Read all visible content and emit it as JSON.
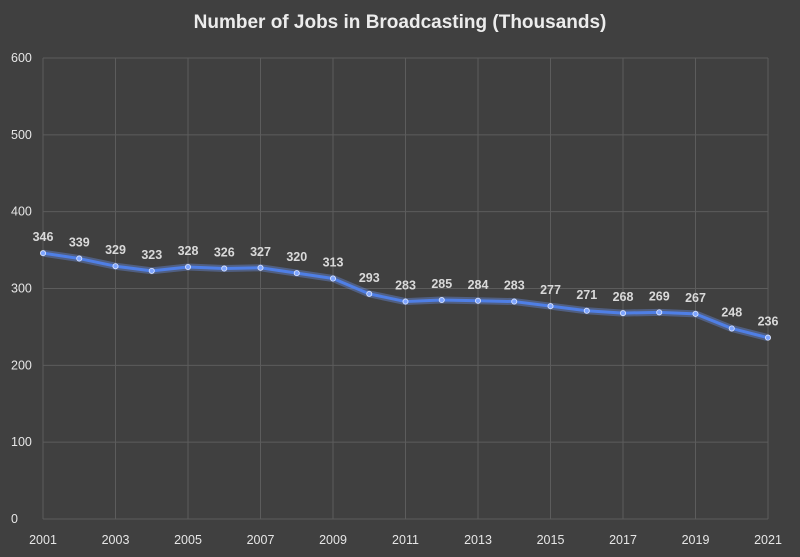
{
  "chart_data": {
    "type": "line",
    "title": "Number of Jobs in Broadcasting (Thousands)",
    "xlabel": "",
    "ylabel": "",
    "x": [
      2001,
      2002,
      2003,
      2004,
      2005,
      2006,
      2007,
      2008,
      2009,
      2010,
      2011,
      2012,
      2013,
      2014,
      2015,
      2016,
      2017,
      2018,
      2019,
      2020,
      2021
    ],
    "x_tick_labels": [
      "2001",
      "2003",
      "2005",
      "2007",
      "2009",
      "2011",
      "2013",
      "2015",
      "2017",
      "2019",
      "2021"
    ],
    "y_tick_labels": [
      "0",
      "100",
      "200",
      "300",
      "400",
      "500",
      "600"
    ],
    "ylim": [
      0,
      600
    ],
    "xlim": [
      2001,
      2021
    ],
    "grid": true,
    "legend": "none",
    "series": [
      {
        "values": [
          346,
          339,
          329,
          323,
          328,
          326,
          327,
          320,
          313,
          293,
          283,
          285,
          284,
          283,
          277,
          271,
          268,
          269,
          267,
          248,
          236
        ],
        "color": "#4f7fe6"
      }
    ]
  }
}
